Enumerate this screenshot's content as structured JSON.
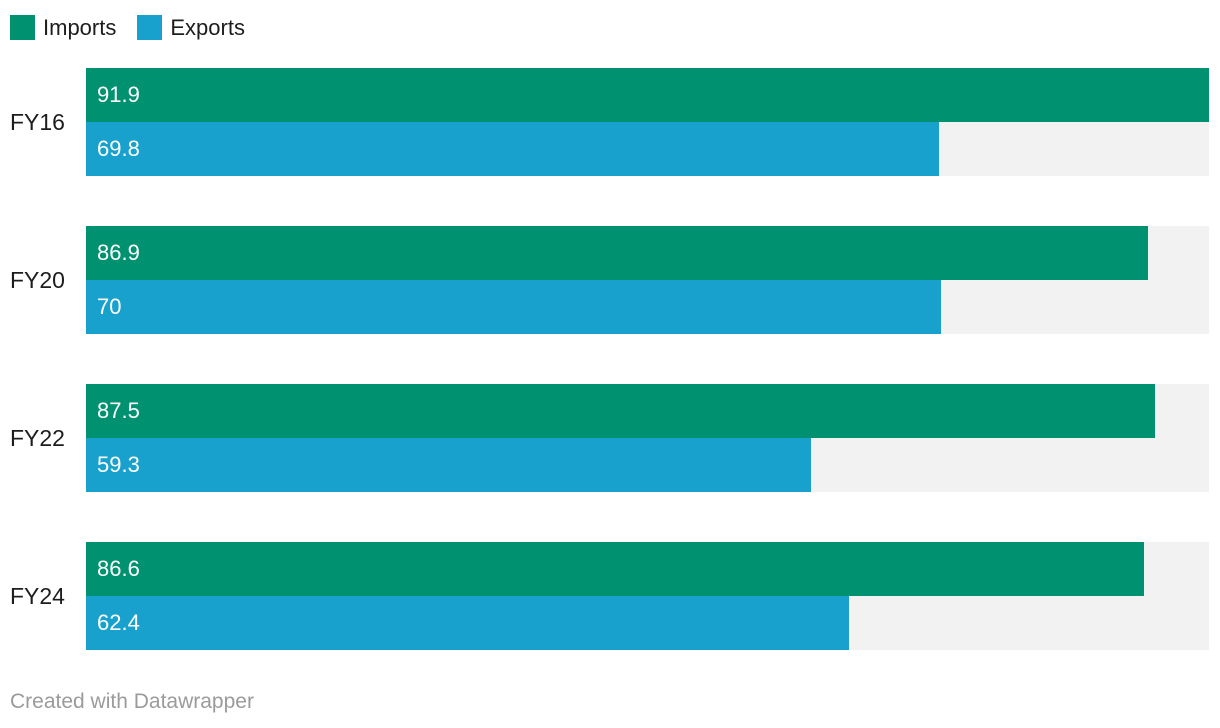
{
  "legend": {
    "position": "top"
  },
  "colors": {
    "imports": "#009270",
    "exports": "#18A1CD",
    "track": "#F2F2F2",
    "category_text": "#1D1D1D",
    "value_text": "#FFFFFF",
    "attribution_text": "#9B9B9B",
    "background": "#FFFFFF"
  },
  "chart_data": {
    "type": "bar",
    "orientation": "horizontal",
    "title": "",
    "xlabel": "",
    "ylabel": "",
    "grid": false,
    "legend_position": "top",
    "value_labels": true,
    "xlim": [
      0,
      91.9
    ],
    "track_color": "#F2F2F2",
    "categories": [
      "FY16",
      "FY20",
      "FY22",
      "FY24"
    ],
    "series": [
      {
        "name": "Imports",
        "color": "#009270",
        "values": [
          91.9,
          86.9,
          87.5,
          86.6
        ]
      },
      {
        "name": "Exports",
        "color": "#18A1CD",
        "values": [
          69.8,
          70,
          59.3,
          62.4
        ]
      }
    ]
  },
  "footer": {
    "attribution": "Created with Datawrapper"
  }
}
